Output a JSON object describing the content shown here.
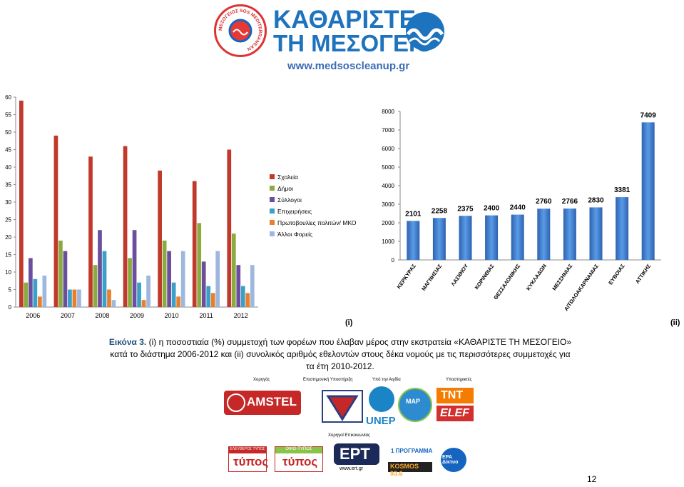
{
  "header": {
    "seal_text": "ΜΕΣΟΓΕΙΟΣ SOS MEDITERRANEAN",
    "title_line1": "ΚΑΘΑΡΙΣΤΕ",
    "title_line2": "ΤΗ ΜΕΣΟΓΕΙΟ",
    "url": "www.medsoscleanup.gr"
  },
  "panel_labels": {
    "left": "(i)",
    "right": "(ii)"
  },
  "caption": {
    "label": "Εικόνα 3.",
    "text": "(i) η ποσοστιαία (%) συμμετοχή των φορέων που έλαβαν μέρος στην εκστρατεία «ΚΑΘΑΡΙΣΤΕ ΤΗ ΜΕΣΟΓΕΙΟ» κατά το διάστημα 2006-2012 και (ii) συνολικός αριθμός εθελοντών στους δέκα νομούς με τις περισσότερες συμμετοχές για τα έτη 2010-2012."
  },
  "sponsors": {
    "headings": [
      "Χορηγός",
      "Επιστημονική Υποστήριξη",
      "Υπό την Αιγίδα",
      "Υποστηρικτές",
      "Χορηγοί Επικοινωνίας"
    ],
    "logos": [
      "AMSTEL",
      "UNEP",
      "MAP",
      "TNT",
      "ELEF",
      "ΕΛΕΥΘΕΡΟΣ ΤΥΠΟΣ",
      "ΟΙΚΟ-ΤΥΠΟΣ",
      "ΕΡΤ",
      "www.ert.gr",
      "1 ΠΡΟΓΡΑΜΜΑ",
      "KOSMOS 93.6",
      "ΕΡΑ Δίκτυο"
    ]
  },
  "page_number": "12",
  "colors": {
    "school": "#c0392b",
    "municipality": "#8aab3e",
    "clubs": "#6c4f9c",
    "business": "#3aa0c8",
    "citizens": "#e87f2d",
    "other": "#9db7dd",
    "bar_blue": "#3f7fcf",
    "brand_blue": "#1e73be"
  },
  "chart_data": [
    {
      "type": "bar",
      "categories": [
        "2006",
        "2007",
        "2008",
        "2009",
        "2010",
        "2011",
        "2012"
      ],
      "series": [
        {
          "name": "Σχολεία",
          "values": [
            59,
            49,
            43,
            46,
            39,
            36,
            45
          ]
        },
        {
          "name": "Δήμοι",
          "values": [
            7,
            19,
            12,
            14,
            19,
            24,
            21
          ]
        },
        {
          "name": "Σύλλογοι",
          "values": [
            14,
            16,
            22,
            22,
            16,
            13,
            12
          ]
        },
        {
          "name": "Επιχειρήσεις",
          "values": [
            8,
            5,
            16,
            7,
            7,
            6,
            6
          ]
        },
        {
          "name": "Πρωτοβουλίες πολιτών/ ΜΚΟ",
          "values": [
            3,
            5,
            5,
            2,
            3,
            4,
            4
          ]
        },
        {
          "name": "Άλλοι Φορείς",
          "values": [
            9,
            5,
            2,
            9,
            16,
            16,
            12
          ]
        }
      ],
      "yticks": [
        "0",
        "5",
        "10",
        "15",
        "20",
        "25",
        "30",
        "35",
        "40",
        "45",
        "50",
        "55",
        "60"
      ],
      "ylim": [
        0,
        60
      ],
      "grid": false,
      "legend": "right"
    },
    {
      "type": "bar",
      "categories": [
        "ΚΕΡΚΥΡΑΣ",
        "ΜΑΓΝΗΣΙΑΣ",
        "ΛΑΣΙΘΙΟΥ",
        "ΚΟΡΙΝΘΙΑΣ",
        "ΘΕΣΣΑΛΟΝΙΚΗΣ",
        "ΚΥΚΛΑΔΩΝ",
        "ΜΕΣΣΗΝΙΑΣ",
        "ΑΙΤΩΛΟΑΚΑΡΝΑΝΙΑΣ",
        "ΕΥΒΟΙΑΣ",
        "ΑΤΤΙΚΗΣ"
      ],
      "values": [
        2101,
        2258,
        2375,
        2400,
        2440,
        2760,
        2766,
        2830,
        3381,
        7409
      ],
      "data_labels": [
        "2101",
        "2258",
        "2375",
        "2400",
        "2440",
        "2760",
        "2766",
        "2830",
        "3381",
        "7409"
      ],
      "yticks": [
        "0",
        "1000",
        "2000",
        "3000",
        "4000",
        "5000",
        "6000",
        "7000",
        "8000"
      ],
      "ylim": [
        0,
        8000
      ],
      "grid": false
    }
  ]
}
